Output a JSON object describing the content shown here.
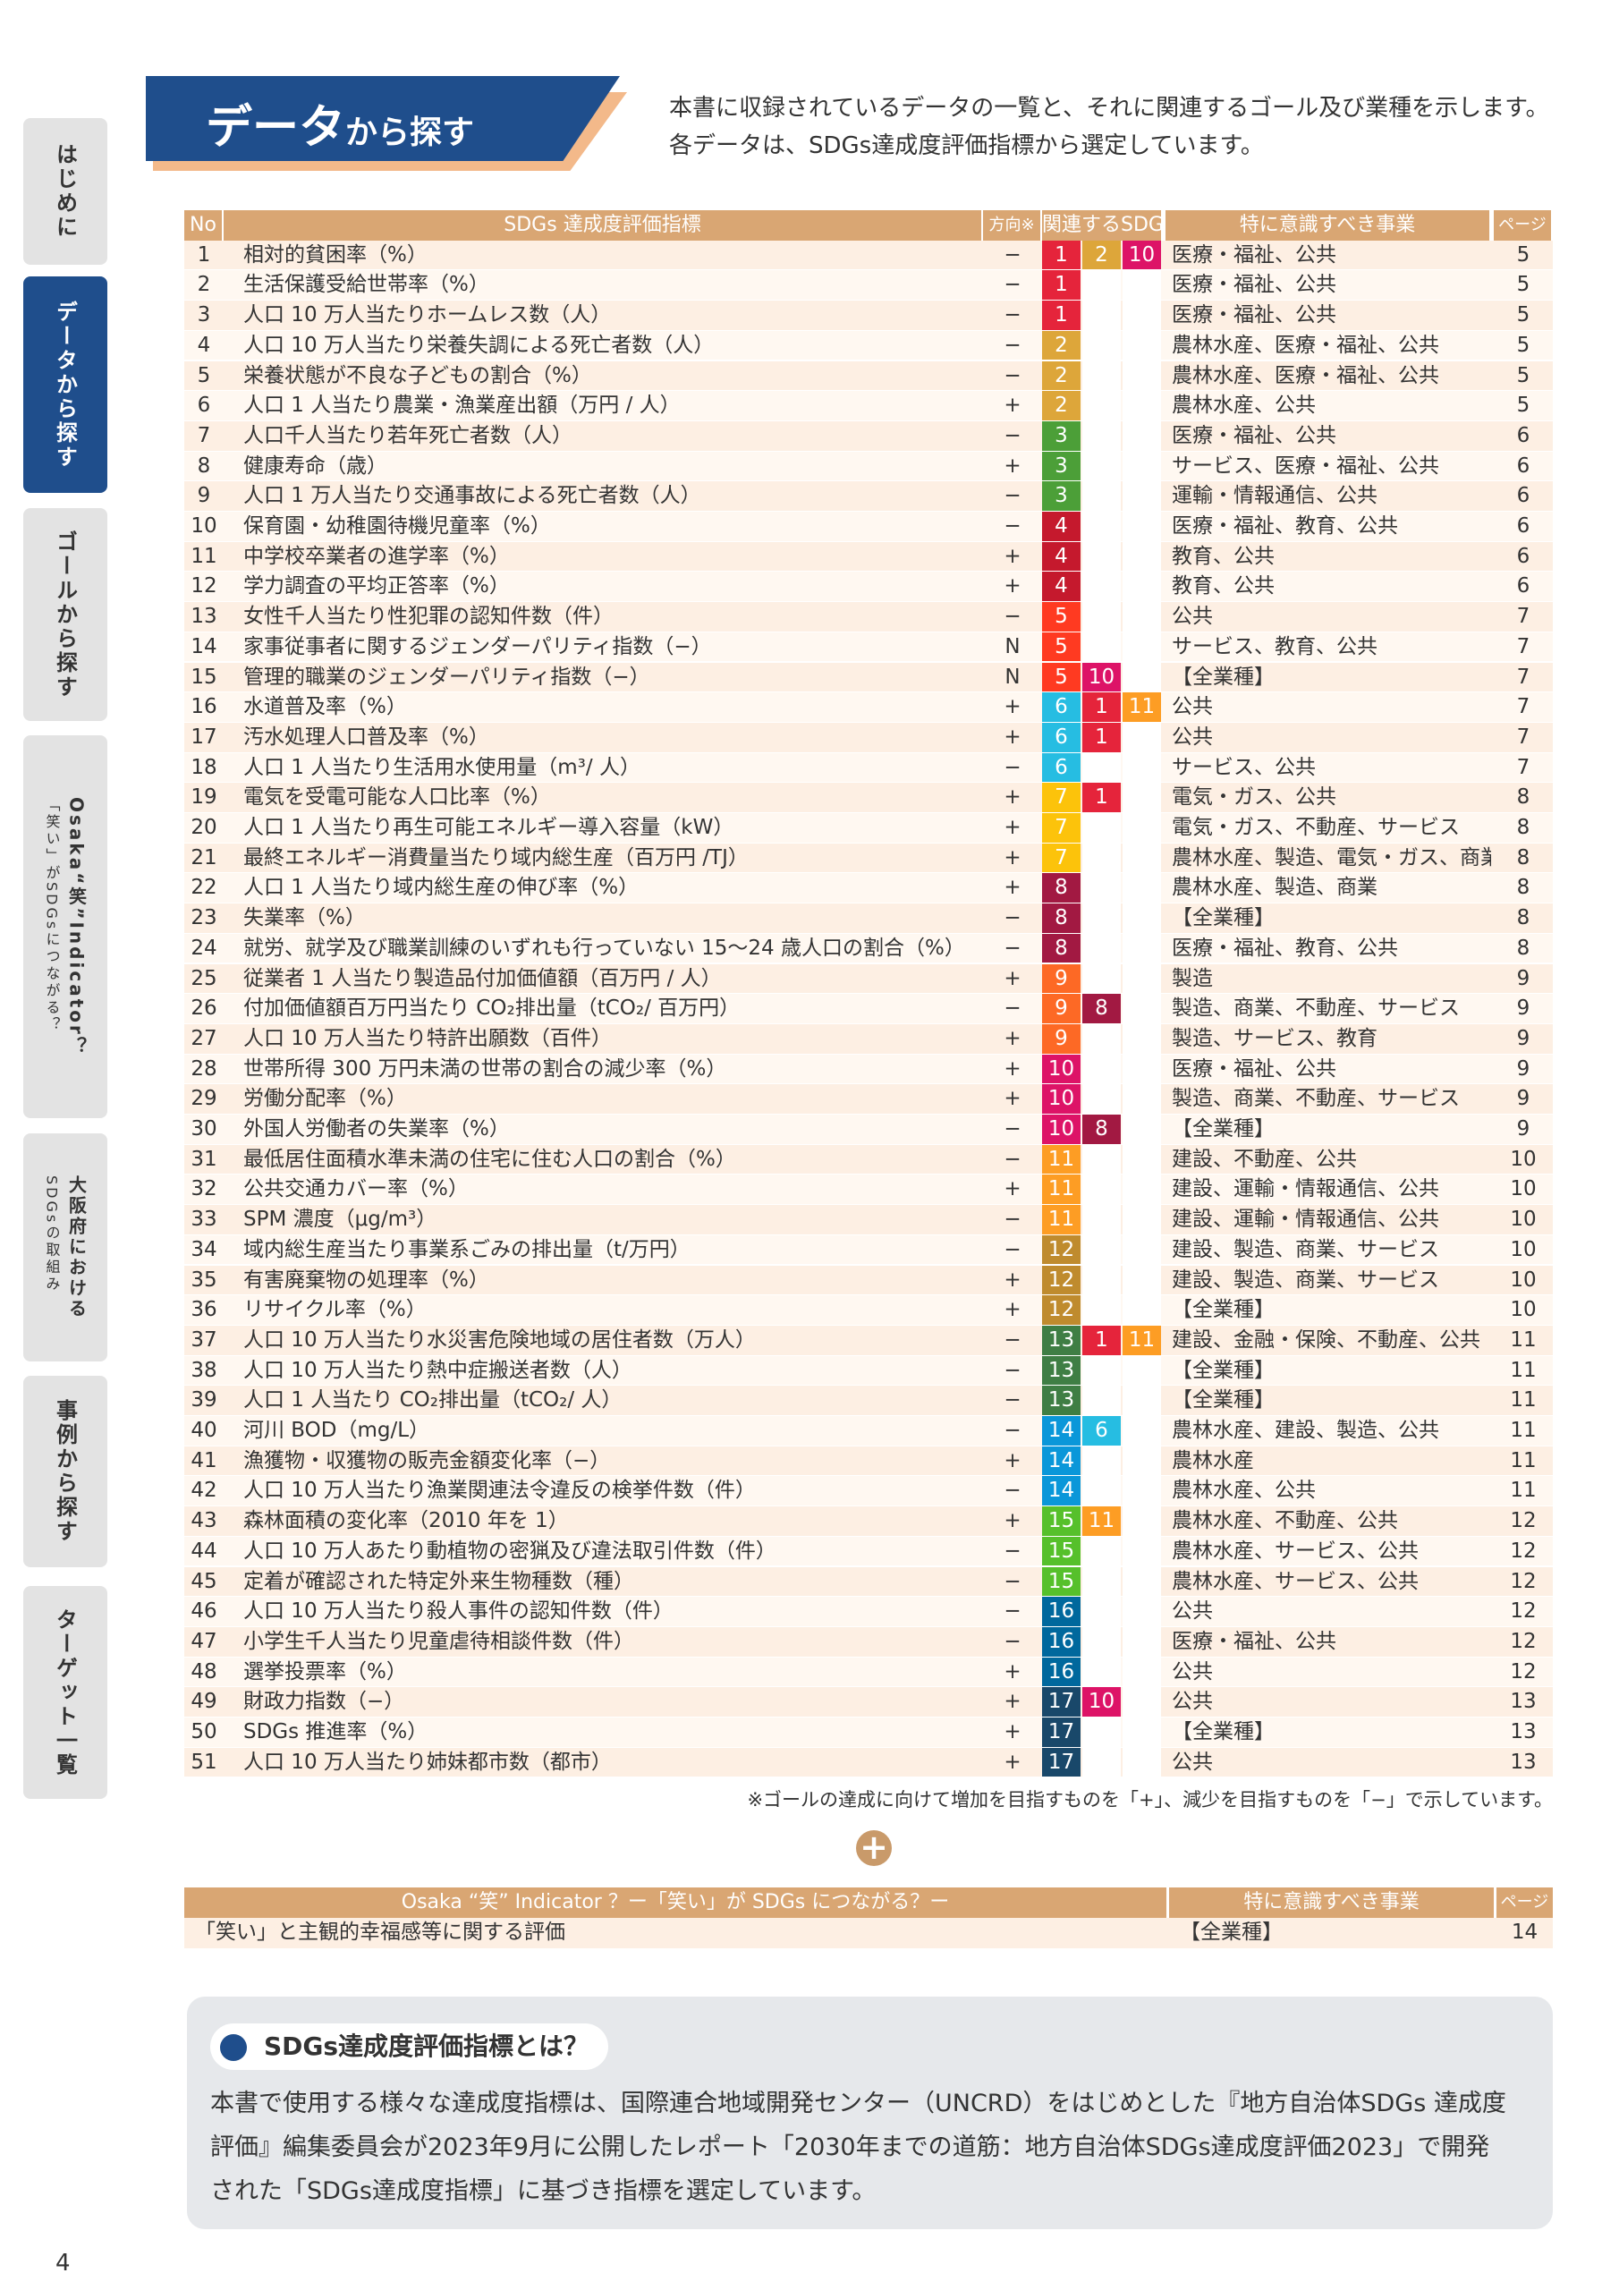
{
  "side_tabs": [
    [
      "はじめに"
    ],
    [
      "データから探す"
    ],
    [
      "ゴールから探す"
    ],
    [
      "Osaka“笑”Indicator？",
      "「笑い」がSDGsにつながる？"
    ],
    [
      "大阪府における",
      "SDGsの取組み"
    ],
    [
      "事例から探す"
    ],
    [
      "ターゲット一覧"
    ]
  ],
  "header": {
    "title_main": "データ",
    "title_sub": "から探す",
    "intro": [
      "本書に収録されているデータの一覧と、それに関連するゴール及び業種を示します。",
      "各データは、SDGs達成度評価指標から選定しています。"
    ]
  },
  "table": {
    "headers": [
      "No",
      "SDGs 達成度評価指標",
      "方向※",
      "関連するSDGs",
      "特に意識すべき事業",
      "ページ"
    ],
    "rows": [
      [
        1,
        "相対的貧困率（%）",
        "−",
        [
          1,
          2,
          10
        ],
        "医療・福祉、公共",
        5
      ],
      [
        2,
        "生活保護受給世帯率（%）",
        "−",
        [
          1
        ],
        "医療・福祉、公共",
        5
      ],
      [
        3,
        "人口 10 万人当たりホームレス数（人）",
        "−",
        [
          1
        ],
        "医療・福祉、公共",
        5
      ],
      [
        4,
        "人口 10 万人当たり栄養失調による死亡者数（人）",
        "−",
        [
          2
        ],
        "農林水産、医療・福祉、公共",
        5
      ],
      [
        5,
        "栄養状態が不良な子どもの割合（%）",
        "−",
        [
          2
        ],
        "農林水産、医療・福祉、公共",
        5
      ],
      [
        6,
        "人口 1 人当たり農業・漁業産出額（万円 / 人）",
        "+",
        [
          2
        ],
        "農林水産、公共",
        5
      ],
      [
        7,
        "人口千人当たり若年死亡者数（人）",
        "−",
        [
          3
        ],
        "医療・福祉、公共",
        6
      ],
      [
        8,
        "健康寿命（歳）",
        "+",
        [
          3
        ],
        "サービス、医療・福祉、公共",
        6
      ],
      [
        9,
        "人口 1 万人当たり交通事故による死亡者数（人）",
        "−",
        [
          3
        ],
        "運輸・情報通信、公共",
        6
      ],
      [
        10,
        "保育園・幼稚園待機児童率（%）",
        "−",
        [
          4
        ],
        "医療・福祉、教育、公共",
        6
      ],
      [
        11,
        "中学校卒業者の進学率（%）",
        "+",
        [
          4
        ],
        "教育、公共",
        6
      ],
      [
        12,
        "学力調査の平均正答率（%）",
        "+",
        [
          4
        ],
        "教育、公共",
        6
      ],
      [
        13,
        "女性千人当たり性犯罪の認知件数（件）",
        "−",
        [
          5
        ],
        "公共",
        7
      ],
      [
        14,
        "家事従事者に関するジェンダーパリティ指数（−）",
        "N",
        [
          5
        ],
        "サービス、教育、公共",
        7
      ],
      [
        15,
        "管理的職業のジェンダーパリティ指数（−）",
        "N",
        [
          5,
          10
        ],
        "【全業種】",
        7
      ],
      [
        16,
        "水道普及率（%）",
        "+",
        [
          6,
          1,
          11
        ],
        "公共",
        7
      ],
      [
        17,
        "汚水処理人口普及率（%）",
        "+",
        [
          6,
          1
        ],
        "公共",
        7
      ],
      [
        18,
        "人口 1 人当たり生活用水使用量（m³/ 人）",
        "−",
        [
          6
        ],
        "サービス、公共",
        7
      ],
      [
        19,
        "電気を受電可能な人口比率（%）",
        "+",
        [
          7,
          1
        ],
        "電気・ガス、公共",
        8
      ],
      [
        20,
        "人口 1 人当たり再生可能エネルギー導入容量（kW）",
        "+",
        [
          7
        ],
        "電気・ガス、不動産、サービス",
        8
      ],
      [
        21,
        "最終エネルギー消費量当たり域内総生産（百万円 /TJ）",
        "+",
        [
          7
        ],
        "農林水産、製造、電気・ガス、商業",
        8
      ],
      [
        22,
        "人口 1 人当たり域内総生産の伸び率（%）",
        "+",
        [
          8
        ],
        "農林水産、製造、商業",
        8
      ],
      [
        23,
        "失業率（%）",
        "−",
        [
          8
        ],
        "【全業種】",
        8
      ],
      [
        24,
        "就労、就学及び職業訓練のいずれも行っていない 15〜24 歳人口の割合（%）",
        "−",
        [
          8
        ],
        "医療・福祉、教育、公共",
        8
      ],
      [
        25,
        "従業者 1 人当たり製造品付加価値額（百万円 / 人）",
        "+",
        [
          9
        ],
        "製造",
        9
      ],
      [
        26,
        "付加価値額百万円当たり CO₂排出量（tCO₂/ 百万円）",
        "−",
        [
          9,
          8
        ],
        "製造、商業、不動産、サービス",
        9
      ],
      [
        27,
        "人口 10 万人当たり特許出願数（百件）",
        "+",
        [
          9
        ],
        "製造、サービス、教育",
        9
      ],
      [
        28,
        "世帯所得 300 万円未満の世帯の割合の減少率（%）",
        "+",
        [
          10
        ],
        "医療・福祉、公共",
        9
      ],
      [
        29,
        "労働分配率（%）",
        "+",
        [
          10
        ],
        "製造、商業、不動産、サービス",
        9
      ],
      [
        30,
        "外国人労働者の失業率（%）",
        "−",
        [
          10,
          8
        ],
        "【全業種】",
        9
      ],
      [
        31,
        "最低居住面積水準未満の住宅に住む人口の割合（%）",
        "−",
        [
          11
        ],
        "建設、不動産、公共",
        10
      ],
      [
        32,
        "公共交通カバー率（%）",
        "+",
        [
          11
        ],
        "建設、運輸・情報通信、公共",
        10
      ],
      [
        33,
        "SPM 濃度（μg/m³）",
        "−",
        [
          11
        ],
        "建設、運輸・情報通信、公共",
        10
      ],
      [
        34,
        "域内総生産当たり事業系ごみの排出量（t/万円）",
        "−",
        [
          12
        ],
        "建設、製造、商業、サービス",
        10
      ],
      [
        35,
        "有害廃棄物の処理率（%）",
        "+",
        [
          12
        ],
        "建設、製造、商業、サービス",
        10
      ],
      [
        36,
        "リサイクル率（%）",
        "+",
        [
          12
        ],
        "【全業種】",
        10
      ],
      [
        37,
        "人口 10 万人当たり水災害危険地域の居住者数（万人）",
        "−",
        [
          13,
          1,
          11
        ],
        "建設、金融・保険、不動産、公共",
        11
      ],
      [
        38,
        "人口 10 万人当たり熱中症搬送者数（人）",
        "−",
        [
          13
        ],
        "【全業種】",
        11
      ],
      [
        39,
        "人口 1 人当たり CO₂排出量（tCO₂/ 人）",
        "−",
        [
          13
        ],
        "【全業種】",
        11
      ],
      [
        40,
        "河川 BOD（mg/L）",
        "−",
        [
          14,
          6
        ],
        "農林水産、建設、製造、公共",
        11
      ],
      [
        41,
        "漁獲物・収獲物の販売金額変化率（−）",
        "+",
        [
          14
        ],
        "農林水産",
        11
      ],
      [
        42,
        "人口 10 万人当たり漁業関連法令違反の検挙件数（件）",
        "−",
        [
          14
        ],
        "農林水産、公共",
        11
      ],
      [
        43,
        "森林面積の変化率（2010 年を 1）",
        "+",
        [
          15,
          11
        ],
        "農林水産、不動産、公共",
        12
      ],
      [
        44,
        "人口 10 万人あたり動植物の密猟及び違法取引件数（件）",
        "−",
        [
          15
        ],
        "農林水産、サービス、公共",
        12
      ],
      [
        45,
        "定着が確認された特定外来生物種数（種）",
        "−",
        [
          15
        ],
        "農林水産、サービス、公共",
        12
      ],
      [
        46,
        "人口 10 万人当たり殺人事件の認知件数（件）",
        "−",
        [
          16
        ],
        "公共",
        12
      ],
      [
        47,
        "小学生千人当たり児童虐待相談件数（件）",
        "−",
        [
          16
        ],
        "医療・福祉、公共",
        12
      ],
      [
        48,
        "選挙投票率（%）",
        "+",
        [
          16
        ],
        "公共",
        12
      ],
      [
        49,
        "財政力指数（−）",
        "+",
        [
          17,
          10
        ],
        "公共",
        13
      ],
      [
        50,
        "SDGs 推進率（%）",
        "+",
        [
          17
        ],
        "【全業種】",
        13
      ],
      [
        51,
        "人口 10 万人当たり姉妹都市数（都市）",
        "+",
        [
          17
        ],
        "公共",
        13
      ]
    ]
  },
  "footnote": "※ゴールの達成に向けて増加を目指すものを「+」、減少を目指すものを「−」で示しています。",
  "extra_table": {
    "headers": [
      "Osaka “笑” Indicator ？ー「笑い」が SDGs につながる？ー",
      "特に意識すべき事業",
      "ページ"
    ],
    "rows": [
      [
        "「笑い」と主観的幸福感等に関する評価",
        "【全業種】",
        14
      ]
    ]
  },
  "info_box": {
    "title": "SDGs達成度評価指標とは？",
    "lines": [
      "本書で使用する様々な達成度指標は、国際連合地域開発センター（UNCRD）をはじめとした『地方自治体SDGs 達成度",
      "評価』編集委員会が2023年9月に公開したレポート「2030年までの道筋：地方自治体SDGs達成度評価2023」で開発",
      "された「SDGs達成度指標」に基づき指標を選定しています。"
    ]
  },
  "page_number": 4
}
